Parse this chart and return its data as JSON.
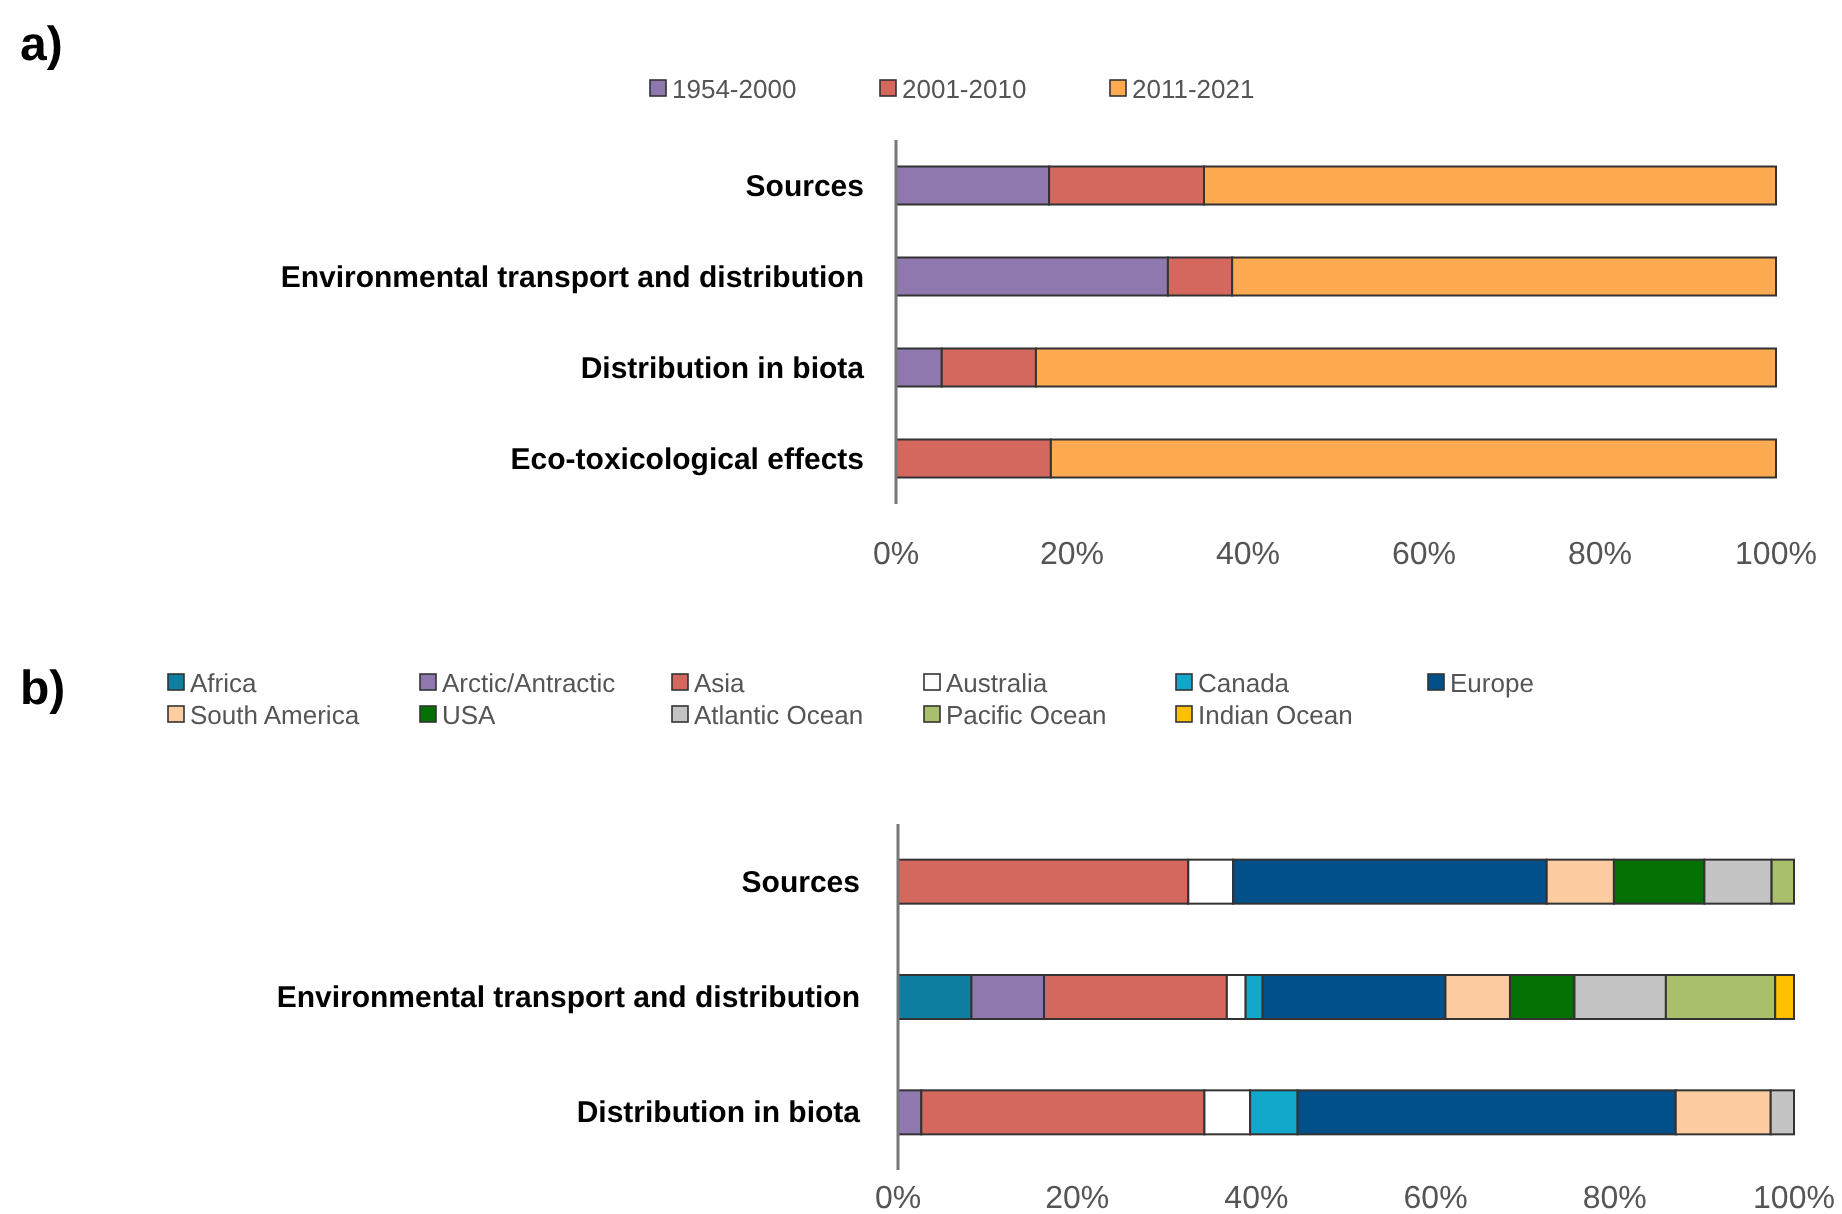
{
  "chart_data": [
    {
      "type": "bar",
      "title": "a)",
      "orientation": "horizontal",
      "stacked": true,
      "legend": "top",
      "grid": false,
      "categories": [
        "Sources",
        "Environmental transport and distribution",
        "Distribution in biota",
        "Eco-toxicological effects"
      ],
      "xlim": [
        0,
        100
      ],
      "xticks": [
        {
          "value": 0,
          "label": "0%"
        },
        {
          "value": 20,
          "label": "20%"
        },
        {
          "value": 40,
          "label": "40%"
        },
        {
          "value": 60,
          "label": "60%"
        },
        {
          "value": 80,
          "label": "80%"
        },
        {
          "value": 100,
          "label": "100%"
        }
      ],
      "series": [
        {
          "name": "1954-2000",
          "color": "#8e78ad",
          "values": [
            17.4,
            30.9,
            5.2,
            0
          ]
        },
        {
          "name": "2001-2010",
          "color": "#d4685e",
          "values": [
            17.6,
            7.3,
            10.7,
            17.6
          ]
        },
        {
          "name": "2011-2021",
          "color": "#fdaa51",
          "values": [
            65,
            61.8,
            84.1,
            82.4
          ]
        }
      ]
    },
    {
      "type": "bar",
      "title": "b)",
      "orientation": "horizontal",
      "stacked": true,
      "legend": "top",
      "grid": false,
      "categories": [
        "Sources",
        "Environmental transport and distribution",
        "Distribution in biota"
      ],
      "xlim": [
        0,
        100
      ],
      "xticks": [
        {
          "value": 0,
          "label": "0%"
        },
        {
          "value": 20,
          "label": "20%"
        },
        {
          "value": 40,
          "label": "40%"
        },
        {
          "value": 60,
          "label": "60%"
        },
        {
          "value": 80,
          "label": "80%"
        },
        {
          "value": 100,
          "label": "100%"
        }
      ],
      "series": [
        {
          "name": "Africa",
          "color": "#0e7fa0",
          "values": [
            0,
            8.2,
            0
          ]
        },
        {
          "name": "Arctic/Antractic",
          "color": "#8e78ad",
          "values": [
            0,
            8.1,
            2.6
          ]
        },
        {
          "name": "Asia",
          "color": "#d4685e",
          "values": [
            32.4,
            20.4,
            31.6
          ]
        },
        {
          "name": "Australia",
          "color": "#ffffff",
          "values": [
            5,
            2.1,
            5.1
          ]
        },
        {
          "name": "Canada",
          "color": "#12a8cb",
          "values": [
            0,
            1.9,
            5.3
          ]
        },
        {
          "name": "Europe",
          "color": "#02508a",
          "values": [
            35,
            20.4,
            42.2
          ]
        },
        {
          "name": "South America",
          "color": "#fdcca0",
          "values": [
            7.5,
            7.2,
            10.6
          ]
        },
        {
          "name": "USA",
          "color": "#037004",
          "values": [
            10.1,
            7.2,
            0
          ]
        },
        {
          "name": "Atlantic Ocean",
          "color": "#c4c4c4",
          "values": [
            7.5,
            10.2,
            2.6
          ]
        },
        {
          "name": "Pacific Ocean",
          "color": "#a9bf6b",
          "values": [
            2.5,
            12.2,
            0
          ]
        },
        {
          "name": "Indian Ocean",
          "color": "#fdc100",
          "values": [
            0,
            2.1,
            0
          ]
        }
      ]
    }
  ]
}
